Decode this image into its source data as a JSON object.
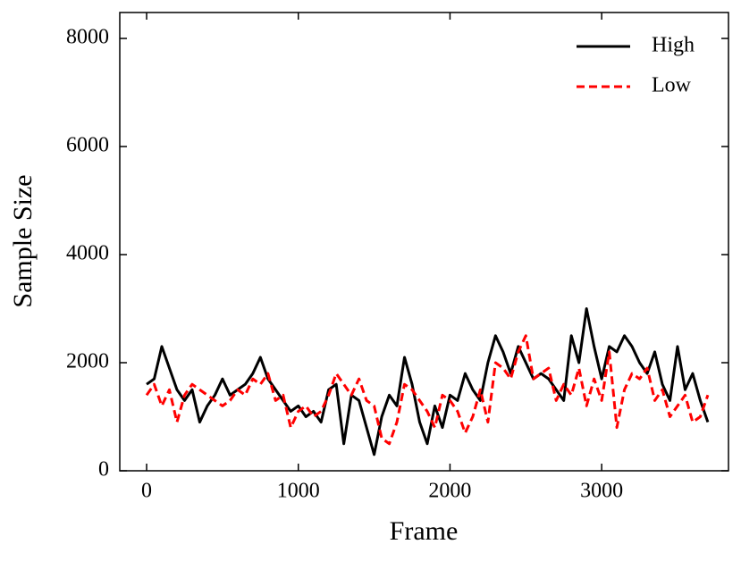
{
  "chart_data": {
    "type": "line",
    "x_label": "Frame",
    "y_label": "Sample Size",
    "x": [
      0,
      50,
      100,
      150,
      200,
      250,
      300,
      350,
      400,
      450,
      500,
      550,
      600,
      650,
      700,
      750,
      800,
      850,
      900,
      950,
      1000,
      1050,
      1100,
      1150,
      1200,
      1250,
      1300,
      1350,
      1400,
      1450,
      1500,
      1550,
      1600,
      1650,
      1700,
      1750,
      1800,
      1850,
      1900,
      1950,
      2000,
      2050,
      2100,
      2150,
      2200,
      2250,
      2300,
      2350,
      2400,
      2450,
      2500,
      2550,
      2600,
      2650,
      2700,
      2750,
      2800,
      2850,
      2900,
      2950,
      3000,
      3050,
      3100,
      3150,
      3200,
      3250,
      3300,
      3350,
      3400,
      3450,
      3500,
      3550,
      3600,
      3650,
      3700
    ],
    "series": [
      {
        "name": "High",
        "color": "#000000",
        "dash": "solid",
        "values": [
          1600,
          1700,
          2300,
          1900,
          1500,
          1300,
          1500,
          900,
          1200,
          1400,
          1700,
          1400,
          1500,
          1600,
          1800,
          2100,
          1700,
          1500,
          1300,
          1100,
          1200,
          1000,
          1100,
          900,
          1500,
          1600,
          500,
          1400,
          1300,
          800,
          300,
          1000,
          1400,
          1200,
          2100,
          1600,
          900,
          500,
          1200,
          800,
          1400,
          1300,
          1800,
          1500,
          1300,
          2000,
          2500,
          2200,
          1800,
          2300,
          2000,
          1700,
          1800,
          1700,
          1500,
          1300,
          2500,
          2000,
          3000,
          2300,
          1700,
          2300,
          2200,
          2500,
          2300,
          2000,
          1800,
          2200,
          1600,
          1300,
          2300,
          1500,
          1800,
          1300,
          900
        ]
      },
      {
        "name": "Low",
        "color": "#ff0000",
        "dash": "dashed",
        "values": [
          1400,
          1600,
          1200,
          1500,
          900,
          1400,
          1600,
          1500,
          1400,
          1300,
          1200,
          1300,
          1500,
          1400,
          1700,
          1600,
          1800,
          1300,
          1400,
          800,
          1100,
          1200,
          1000,
          1100,
          1400,
          1800,
          1600,
          1400,
          1700,
          1300,
          1200,
          600,
          500,
          900,
          1600,
          1500,
          1300,
          1100,
          800,
          1400,
          1300,
          1100,
          700,
          1000,
          1500,
          900,
          2000,
          1900,
          1700,
          2200,
          2500,
          1700,
          1800,
          1900,
          1300,
          1600,
          1400,
          1900,
          1200,
          1700,
          1300,
          2200,
          800,
          1500,
          1800,
          1700,
          1900,
          1300,
          1500,
          1000,
          1200,
          1400,
          900,
          1000,
          1400
        ]
      }
    ],
    "xlim": [
      -177,
      3836
    ],
    "ylim": [
      0,
      8480
    ],
    "xticks": [
      0,
      1000,
      2000,
      3000
    ],
    "yticks": [
      0,
      2000,
      4000,
      6000,
      8000
    ],
    "grid": false,
    "legend": "upper right"
  }
}
